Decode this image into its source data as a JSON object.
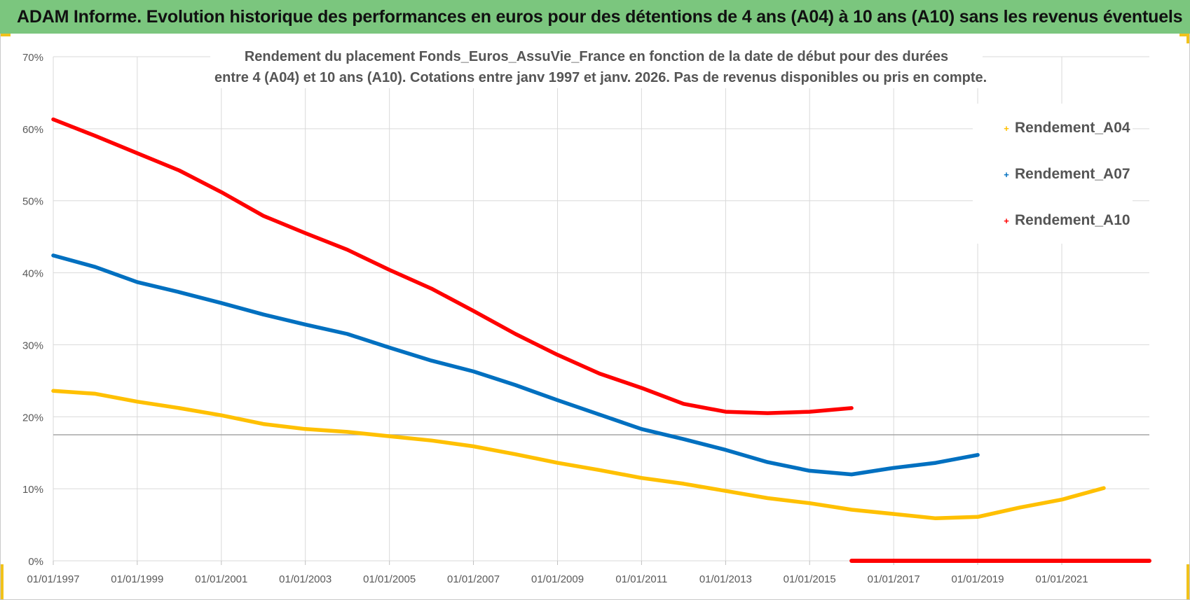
{
  "banner": {
    "title": "ADAM Informe. Evolution historique des performances en euros pour des détentions de 4 ans (A04) à 10 ans (A10) sans les revenus éventuels",
    "background_color": "#7bc67e"
  },
  "chart_data": {
    "type": "line",
    "title_lines": [
      "Rendement du placement Fonds_Euros_AssuVie_France en fonction de la date de début pour des durées",
      "entre 4 (A04) et 10 ans (A10).  Cotations entre janv 1997 et janv. 2026. Pas de revenus disponibles ou pris en compte."
    ],
    "xlabel": "",
    "ylabel": "",
    "x_ticks": [
      "01/01/1997",
      "01/01/1999",
      "01/01/2001",
      "01/01/2003",
      "01/01/2005",
      "01/01/2007",
      "01/01/2009",
      "01/01/2011",
      "01/01/2013",
      "01/01/2015",
      "01/01/2017",
      "01/01/2019",
      "01/01/2021"
    ],
    "y_ticks": [
      "0%",
      "10%",
      "20%",
      "30%",
      "40%",
      "50%",
      "60%",
      "70%"
    ],
    "xlim": [
      "1997-01-01",
      "2023-02-01"
    ],
    "ylim": [
      0,
      70
    ],
    "y_unit": "%",
    "grid": true,
    "legend_position": "right",
    "series": [
      {
        "name": "Rendement_A04",
        "color": "#ffc000",
        "points": [
          [
            "1997-01-01",
            23.6
          ],
          [
            "1998-01-01",
            23.2
          ],
          [
            "1999-01-01",
            22.1
          ],
          [
            "2000-01-01",
            21.2
          ],
          [
            "2001-01-01",
            20.2
          ],
          [
            "2002-01-01",
            19.0
          ],
          [
            "2003-01-01",
            18.3
          ],
          [
            "2004-01-01",
            17.9
          ],
          [
            "2005-01-01",
            17.3
          ],
          [
            "2006-01-01",
            16.7
          ],
          [
            "2007-01-01",
            15.9
          ],
          [
            "2008-01-01",
            14.8
          ],
          [
            "2009-01-01",
            13.6
          ],
          [
            "2010-01-01",
            12.6
          ],
          [
            "2011-01-01",
            11.5
          ],
          [
            "2012-01-01",
            10.7
          ],
          [
            "2013-01-01",
            9.7
          ],
          [
            "2014-01-01",
            8.7
          ],
          [
            "2015-01-01",
            8.0
          ],
          [
            "2016-01-01",
            7.1
          ],
          [
            "2017-01-01",
            6.5
          ],
          [
            "2018-01-01",
            5.9
          ],
          [
            "2019-01-01",
            6.1
          ],
          [
            "2020-01-01",
            7.4
          ],
          [
            "2021-01-01",
            8.5
          ],
          [
            "2022-01-01",
            10.1
          ]
        ]
      },
      {
        "name": "Rendement_A07",
        "color": "#0070c0",
        "points": [
          [
            "1997-01-01",
            42.4
          ],
          [
            "1998-01-01",
            40.8
          ],
          [
            "1999-01-01",
            38.7
          ],
          [
            "2000-01-01",
            37.3
          ],
          [
            "2001-01-01",
            35.8
          ],
          [
            "2002-01-01",
            34.2
          ],
          [
            "2003-01-01",
            32.8
          ],
          [
            "2004-01-01",
            31.5
          ],
          [
            "2005-01-01",
            29.6
          ],
          [
            "2006-01-01",
            27.8
          ],
          [
            "2007-01-01",
            26.3
          ],
          [
            "2008-01-01",
            24.4
          ],
          [
            "2009-01-01",
            22.3
          ],
          [
            "2010-01-01",
            20.3
          ],
          [
            "2011-01-01",
            18.3
          ],
          [
            "2012-01-01",
            16.9
          ],
          [
            "2013-01-01",
            15.4
          ],
          [
            "2014-01-01",
            13.7
          ],
          [
            "2015-01-01",
            12.5
          ],
          [
            "2016-01-01",
            12.0
          ],
          [
            "2017-01-01",
            12.9
          ],
          [
            "2018-01-01",
            13.6
          ],
          [
            "2019-01-01",
            14.7
          ]
        ]
      },
      {
        "name": "Rendement_A10",
        "color": "#ff0000",
        "points": [
          [
            "1997-01-01",
            61.3
          ],
          [
            "1998-01-01",
            59.0
          ],
          [
            "1999-01-01",
            56.6
          ],
          [
            "2000-01-01",
            54.2
          ],
          [
            "2001-01-01",
            51.2
          ],
          [
            "2002-01-01",
            47.9
          ],
          [
            "2003-01-01",
            45.5
          ],
          [
            "2004-01-01",
            43.2
          ],
          [
            "2005-01-01",
            40.4
          ],
          [
            "2006-01-01",
            37.8
          ],
          [
            "2007-01-01",
            34.7
          ],
          [
            "2008-01-01",
            31.5
          ],
          [
            "2009-01-01",
            28.6
          ],
          [
            "2010-01-01",
            26.0
          ],
          [
            "2011-01-01",
            24.0
          ],
          [
            "2012-01-01",
            21.8
          ],
          [
            "2013-01-01",
            20.7
          ],
          [
            "2014-01-01",
            20.5
          ],
          [
            "2015-01-01",
            20.7
          ],
          [
            "2016-01-01",
            21.2
          ]
        ],
        "zero_segment": [
          "2016-01-01",
          "2023-02-01"
        ]
      }
    ],
    "reference_line_y": 17.5,
    "reference_line_color": "#a6a6a6",
    "grid_color": "#d9d9d9",
    "tick_label_color": "#595959",
    "title_color": "#555555",
    "frame_accent_color": "#f1c21b"
  }
}
